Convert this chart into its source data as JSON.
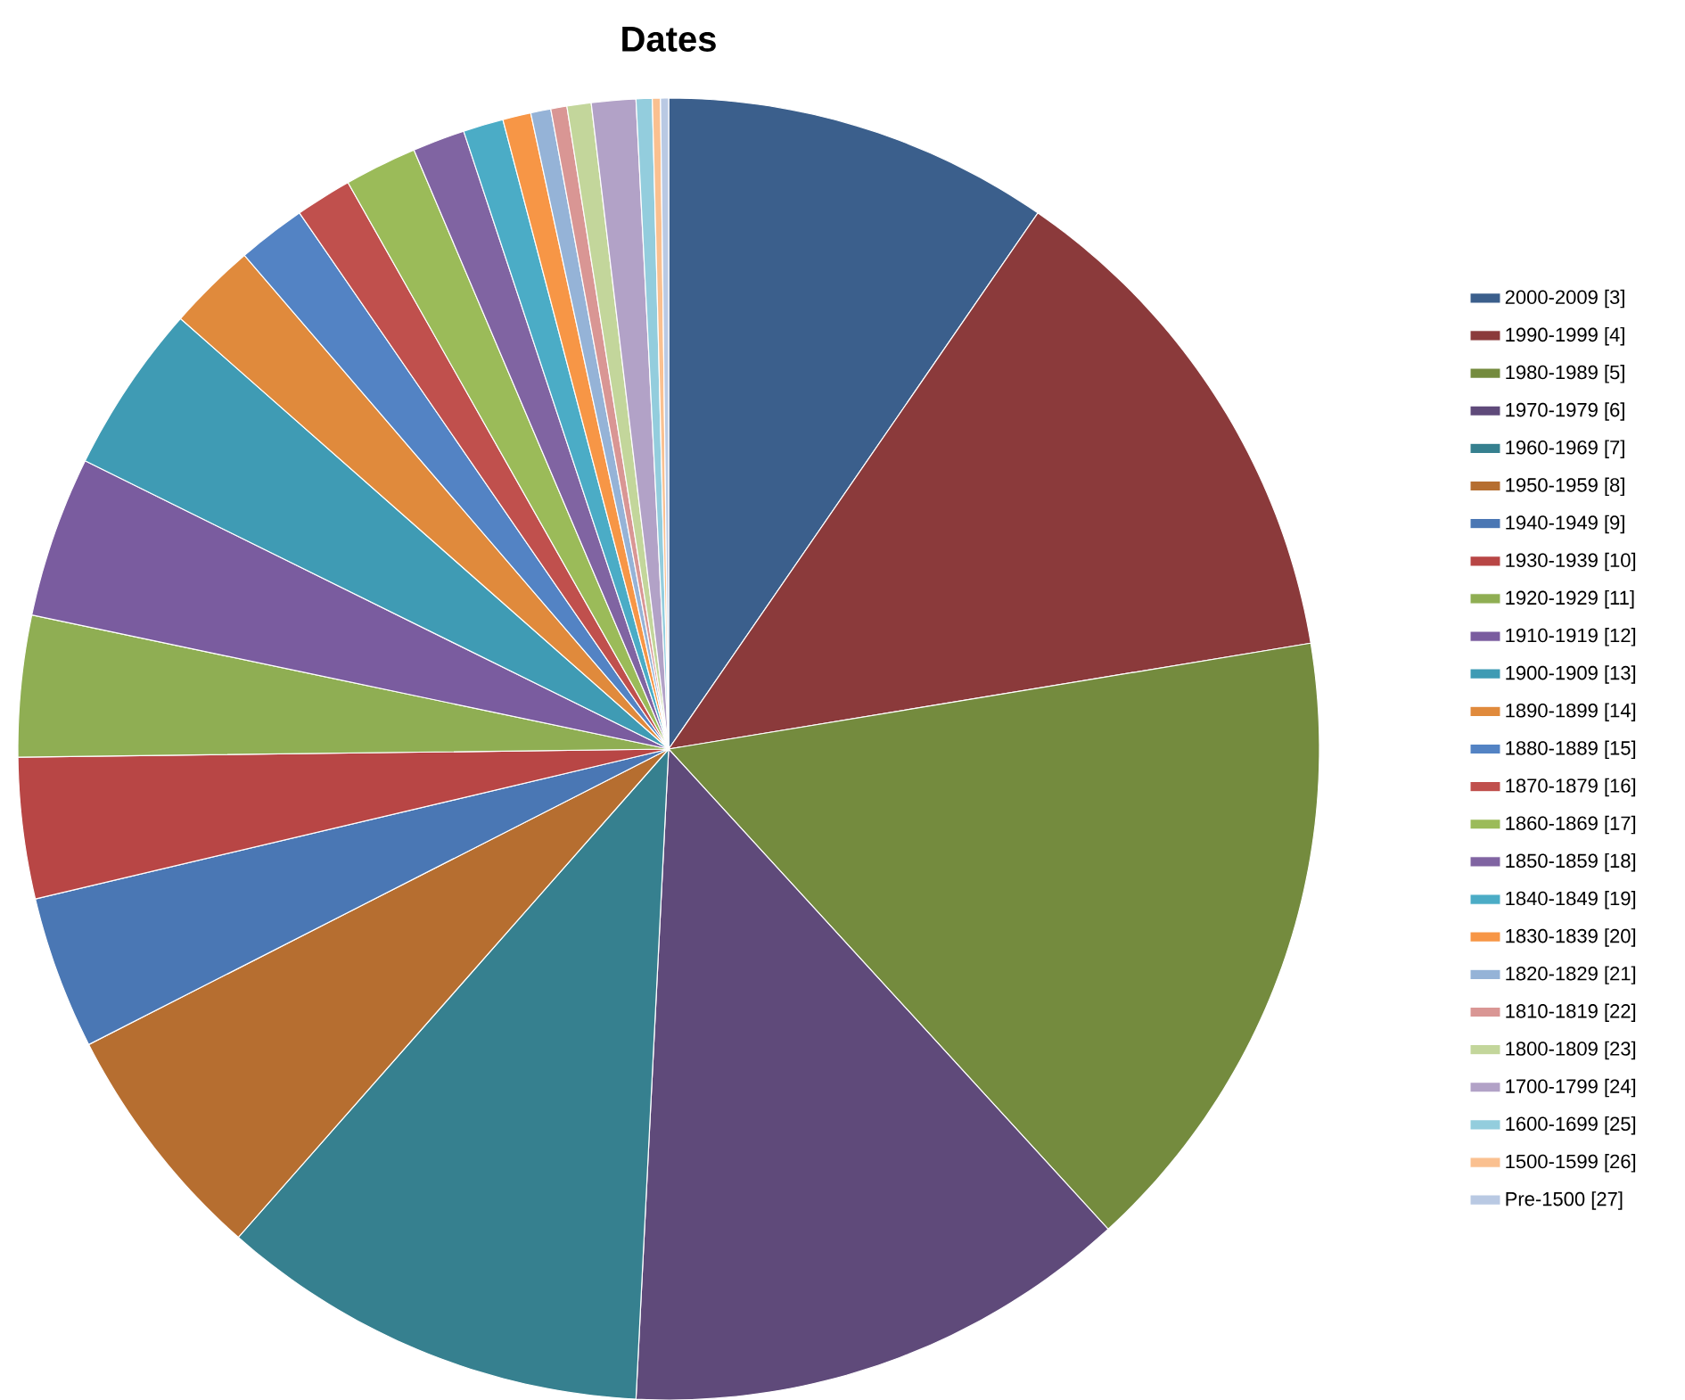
{
  "chart_data": {
    "type": "pie",
    "title": "Dates",
    "categories": [
      "2000-2009 [3]",
      "1990-1999 [4]",
      "1980-1989 [5]",
      "1970-1979 [6]",
      "1960-1969 [7]",
      "1950-1959 [8]",
      "1940-1949 [9]",
      "1930-1939 [10]",
      "1920-1929 [11]",
      "1910-1919 [12]",
      "1900-1909 [13]",
      "1890-1899 [14]",
      "1880-1889 [15]",
      "1870-1879 [16]",
      "1860-1869 [17]",
      "1850-1859 [18]",
      "1840-1849 [19]",
      "1830-1839 [20]",
      "1820-1829 [21]",
      "1810-1819 [22]",
      "1800-1809 [23]",
      "1700-1799 [24]",
      "1600-1699 [25]",
      "1500-1599 [26]",
      "Pre-1500 [27]"
    ],
    "values": [
      9.6,
      12.8,
      15.8,
      12.6,
      10.7,
      6.0,
      3.8,
      3.5,
      3.5,
      4.0,
      4.2,
      2.2,
      1.7,
      1.4,
      1.8,
      1.3,
      1.0,
      0.7,
      0.5,
      0.4,
      0.6,
      1.1,
      0.4,
      0.2,
      0.2
    ],
    "colors": [
      "#3b5f8c",
      "#8b3a3b",
      "#748b3e",
      "#5f4a7a",
      "#36808f",
      "#b66e30",
      "#4a77b4",
      "#b84645",
      "#8fae53",
      "#7a5c9f",
      "#3f9bb4",
      "#e08a3c",
      "#5383c4",
      "#c0504d",
      "#9bbb59",
      "#8064a2",
      "#4bacc6",
      "#f79646",
      "#95b3d7",
      "#d99694",
      "#c3d69b",
      "#b2a2c7",
      "#93cddd",
      "#fac090",
      "#b9c9e3"
    ],
    "legend": "right"
  }
}
